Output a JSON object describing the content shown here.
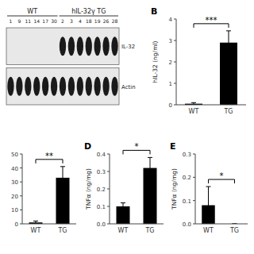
{
  "chart_data": [
    {
      "type": "western_blot",
      "groups": [
        {
          "name": "WT",
          "samples": [
            "1",
            "9",
            "11",
            "14",
            "17",
            "30"
          ]
        },
        {
          "name": "hIL-32γ TG",
          "samples": [
            "2",
            "3",
            "4",
            "18",
            "19",
            "26",
            "28"
          ]
        }
      ],
      "bands": [
        {
          "name": "IL-32",
          "groups": [
            "hIL-32γ TG"
          ]
        },
        {
          "name": "Actin",
          "groups": [
            "WT",
            "hIL-32γ TG"
          ]
        }
      ]
    },
    {
      "type": "bar",
      "label": "B",
      "y_label": "hIL-32 (ng/ml)",
      "categories": [
        "WT",
        "TG"
      ],
      "values": [
        0.05,
        2.9
      ],
      "errors": [
        0.05,
        0.55
      ],
      "color": "#000000",
      "ylim": [
        0,
        4
      ],
      "yticks": [
        0,
        1,
        2,
        3,
        4
      ],
      "annotation": "***"
    },
    {
      "type": "bar",
      "categories": [
        "WT",
        "TG"
      ],
      "values": [
        1.0,
        33.0
      ],
      "errors": [
        1.0,
        8.0
      ],
      "color": "#000000",
      "ylim": [
        0,
        50
      ],
      "yticks": [
        0,
        10,
        20,
        30,
        40,
        50
      ],
      "annotation": "**"
    },
    {
      "type": "bar",
      "label": "D",
      "y_label": "TNFα (ng/mg)",
      "categories": [
        "WT",
        "TG"
      ],
      "values": [
        0.1,
        0.32
      ],
      "errors": [
        0.02,
        0.06
      ],
      "color": "#000000",
      "ylim": [
        0,
        0.4
      ],
      "yticks": [
        {
          "value": 0,
          "label": "0.0"
        },
        0.1,
        0.2,
        0.3,
        0.4
      ],
      "annotation": "*"
    },
    {
      "type": "bar",
      "label": "E",
      "y_label": "TNFα (ng/mg)",
      "categories": [
        "WT",
        "TG"
      ],
      "values": [
        0.08,
        0.0
      ],
      "errors": [
        0.08,
        0.0
      ],
      "color": "#000000",
      "ylim": [
        0,
        0.3
      ],
      "yticks": [
        {
          "value": 0,
          "label": "0.0"
        },
        0.1,
        0.2,
        0.3
      ],
      "annotation": "*"
    }
  ]
}
